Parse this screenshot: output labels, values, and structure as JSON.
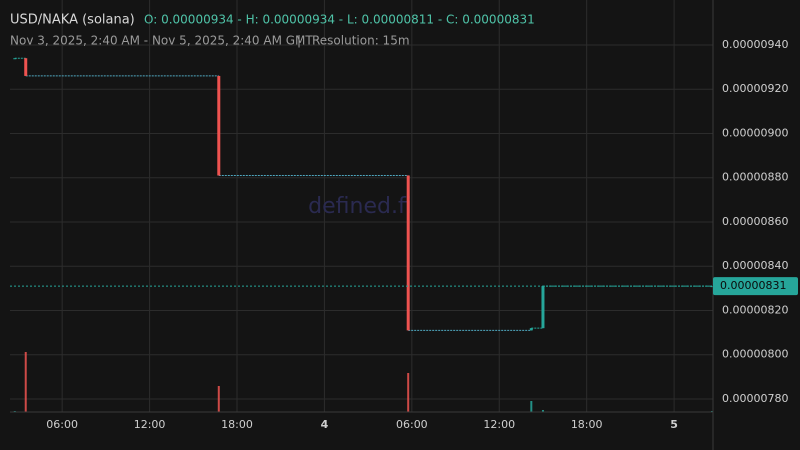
{
  "chart_data": {
    "type": "candlestick",
    "title": "USD/NAKA (solana)",
    "ohlc_text": "O: 0.00000934 - H: 0.00000934 - L: 0.00000811 - C: 0.00000831",
    "subtitle": "Nov 3, 2025, 2:40 AM - Nov 5, 2025, 2:40 AM GMT",
    "separator": "|",
    "resolution": "Resolution: 15m",
    "watermark": "defined.fi",
    "up_color": "#26a69a",
    "down_color": "#ef5350",
    "x": [
      2.75,
      3.5,
      16.75,
      29.75,
      38.2,
      39.0,
      50.6
    ],
    "open": [
      9.34e-06,
      9.34e-06,
      9.26e-06,
      8.81e-06,
      8.11e-06,
      8.12e-06,
      8.31e-06
    ],
    "high": [
      9.34e-06,
      9.34e-06,
      9.26e-06,
      8.81e-06,
      8.12e-06,
      8.31e-06,
      8.31e-06
    ],
    "low": [
      9.34e-06,
      9.26e-06,
      8.81e-06,
      8.11e-06,
      8.11e-06,
      8.12e-06,
      8.31e-06
    ],
    "close": [
      9.34e-06,
      9.26e-06,
      8.81e-06,
      8.11e-06,
      8.12e-06,
      8.31e-06,
      8.31e-06
    ],
    "volume": [
      1,
      60,
      26,
      39,
      11,
      2,
      1
    ],
    "volume_lim": [
      0,
      100
    ],
    "last_price": {
      "value": 8.31e-06,
      "label": "0.00000831"
    },
    "xlim": [
      2.42,
      50.67
    ],
    "xticks": [
      {
        "value": 6,
        "label": "06:00"
      },
      {
        "value": 12,
        "label": "12:00"
      },
      {
        "value": 18,
        "label": "18:00"
      },
      {
        "value": 24,
        "label": "4"
      },
      {
        "value": 30,
        "label": "06:00"
      },
      {
        "value": 36,
        "label": "12:00"
      },
      {
        "value": 42,
        "label": "18:00"
      },
      {
        "value": 48,
        "label": "5"
      }
    ],
    "ylim": [
      7.741e-06,
      9.6032e-06
    ],
    "yticks": [
      {
        "value": 7.8e-06,
        "label": "0.00000780"
      },
      {
        "value": 8e-06,
        "label": "0.00000800"
      },
      {
        "value": 8.2e-06,
        "label": "0.00000820"
      },
      {
        "value": 8.4e-06,
        "label": "0.00000840"
      },
      {
        "value": 8.6e-06,
        "label": "0.00000860"
      },
      {
        "value": 8.8e-06,
        "label": "0.00000880"
      },
      {
        "value": 9e-06,
        "label": "0.00000900"
      },
      {
        "value": 9.2e-06,
        "label": "0.00000920"
      },
      {
        "value": 9.4e-06,
        "label": "0.00000940"
      }
    ],
    "grid": true
  }
}
